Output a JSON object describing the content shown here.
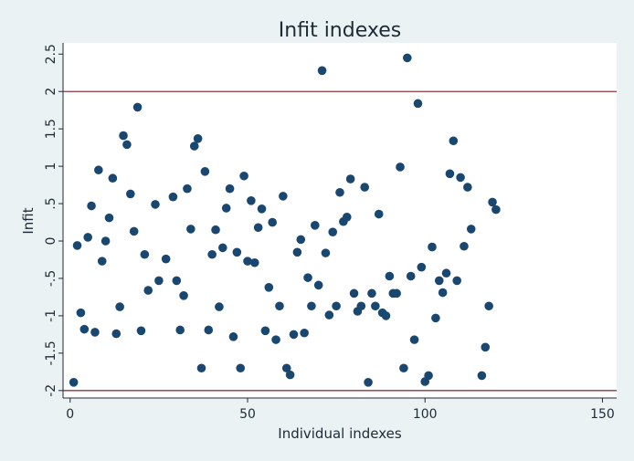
{
  "chart_data": {
    "type": "scatter",
    "title": "Infit indexes",
    "xlabel": "Individual indexes",
    "ylabel": "Infit",
    "xlim": [
      -2,
      154
    ],
    "ylim": [
      -2.1,
      2.65
    ],
    "xticks": [
      0,
      50,
      100,
      150
    ],
    "yticks": [
      2.5,
      2,
      1.5,
      1,
      0.5,
      0,
      -0.5,
      -1,
      -1.5,
      -2
    ],
    "ytick_labels": [
      "2.5",
      "2",
      "1.5",
      "1",
      ".5",
      "0",
      "-.5",
      "-1",
      "-1.5",
      "-2"
    ],
    "reference_lines": [
      2,
      -2
    ],
    "grid": false,
    "colors": {
      "background": "#eaf2f3",
      "plot_area": "#ffffff",
      "marker": "#1a476f",
      "reference_line": "#90353b",
      "text": "#1e2a36"
    },
    "points": [
      [
        1,
        -1.89
      ],
      [
        2,
        -0.06
      ],
      [
        3,
        -0.96
      ],
      [
        4,
        -1.18
      ],
      [
        5,
        0.05
      ],
      [
        6,
        0.47
      ],
      [
        7,
        -1.22
      ],
      [
        8,
        0.95
      ],
      [
        9,
        -0.27
      ],
      [
        10,
        0.0
      ],
      [
        11,
        0.31
      ],
      [
        12,
        0.84
      ],
      [
        13,
        -1.24
      ],
      [
        14,
        -0.88
      ],
      [
        15,
        1.41
      ],
      [
        16,
        1.29
      ],
      [
        17,
        0.63
      ],
      [
        18,
        0.13
      ],
      [
        19,
        1.79
      ],
      [
        20,
        -1.2
      ],
      [
        21,
        -0.18
      ],
      [
        22,
        -0.66
      ],
      [
        24,
        0.49
      ],
      [
        25,
        -0.53
      ],
      [
        27,
        -0.24
      ],
      [
        29,
        0.59
      ],
      [
        30,
        -0.53
      ],
      [
        31,
        -1.19
      ],
      [
        32,
        -0.73
      ],
      [
        33,
        0.7
      ],
      [
        34,
        0.16
      ],
      [
        35,
        1.27
      ],
      [
        36,
        1.37
      ],
      [
        37,
        -1.7
      ],
      [
        38,
        0.93
      ],
      [
        39,
        -1.19
      ],
      [
        40,
        -0.18
      ],
      [
        41,
        0.15
      ],
      [
        42,
        -0.88
      ],
      [
        43,
        -0.09
      ],
      [
        44,
        0.44
      ],
      [
        45,
        0.7
      ],
      [
        46,
        -1.28
      ],
      [
        47,
        -0.15
      ],
      [
        48,
        -1.7
      ],
      [
        49,
        0.87
      ],
      [
        50,
        -0.27
      ],
      [
        51,
        0.54
      ],
      [
        52,
        -0.29
      ],
      [
        53,
        0.18
      ],
      [
        54,
        0.43
      ],
      [
        55,
        -1.2
      ],
      [
        56,
        -0.62
      ],
      [
        57,
        0.25
      ],
      [
        58,
        -1.32
      ],
      [
        59,
        -0.87
      ],
      [
        60,
        0.6
      ],
      [
        61,
        -1.7
      ],
      [
        62,
        -1.79
      ],
      [
        63,
        -1.25
      ],
      [
        64,
        -0.15
      ],
      [
        65,
        0.02
      ],
      [
        66,
        -1.23
      ],
      [
        67,
        -0.49
      ],
      [
        68,
        -0.87
      ],
      [
        69,
        0.21
      ],
      [
        70,
        -0.59
      ],
      [
        71,
        2.28
      ],
      [
        72,
        -0.16
      ],
      [
        73,
        -0.99
      ],
      [
        74,
        0.12
      ],
      [
        75,
        -0.87
      ],
      [
        76,
        0.65
      ],
      [
        77,
        0.26
      ],
      [
        78,
        0.32
      ],
      [
        79,
        0.83
      ],
      [
        80,
        -0.7
      ],
      [
        81,
        -0.94
      ],
      [
        82,
        -0.87
      ],
      [
        83,
        0.72
      ],
      [
        84,
        -1.89
      ],
      [
        85,
        -0.7
      ],
      [
        86,
        -0.87
      ],
      [
        87,
        0.36
      ],
      [
        88,
        -0.96
      ],
      [
        89,
        -1.0
      ],
      [
        90,
        -0.47
      ],
      [
        91,
        -0.7
      ],
      [
        92,
        -0.7
      ],
      [
        93,
        0.99
      ],
      [
        94,
        -1.7
      ],
      [
        95,
        2.45
      ],
      [
        96,
        -0.47
      ],
      [
        97,
        -1.32
      ],
      [
        98,
        1.84
      ],
      [
        99,
        -0.35
      ],
      [
        100,
        -1.88
      ],
      [
        101,
        -1.8
      ],
      [
        102,
        -0.08
      ],
      [
        103,
        -1.03
      ],
      [
        104,
        -0.53
      ],
      [
        105,
        -0.69
      ],
      [
        106,
        -0.43
      ],
      [
        107,
        0.9
      ],
      [
        108,
        1.34
      ],
      [
        109,
        -0.53
      ],
      [
        110,
        0.85
      ],
      [
        111,
        -0.07
      ],
      [
        112,
        0.72
      ],
      [
        113,
        0.16
      ],
      [
        116,
        -1.8
      ],
      [
        117,
        -1.42
      ],
      [
        118,
        -0.87
      ],
      [
        119,
        0.52
      ],
      [
        120,
        0.42
      ]
    ]
  }
}
